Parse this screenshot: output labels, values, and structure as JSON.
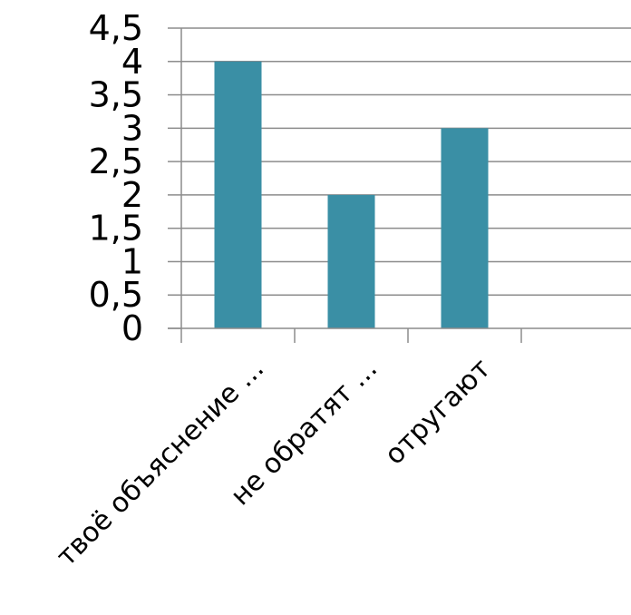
{
  "chart_data": {
    "type": "bar",
    "categories": [
      "твоё объяснение ...",
      "не обратят ...",
      "отругают",
      ""
    ],
    "series": [
      {
        "values": [
          4,
          2,
          3,
          null
        ],
        "color": "#3a8fa5"
      }
    ],
    "y_ticks": [
      "0",
      "0,5",
      "1",
      "1,5",
      "2",
      "2,5",
      "3",
      "3,5",
      "4",
      "4,5"
    ],
    "ylim": [
      0,
      4.5
    ],
    "y_tick_step": 0.5,
    "grid": true,
    "legend": "none",
    "colors": {
      "bar": "#3a8fa5",
      "grid": "#8c8c8c",
      "axis": "#8c8c8c",
      "text": "#000000"
    }
  }
}
